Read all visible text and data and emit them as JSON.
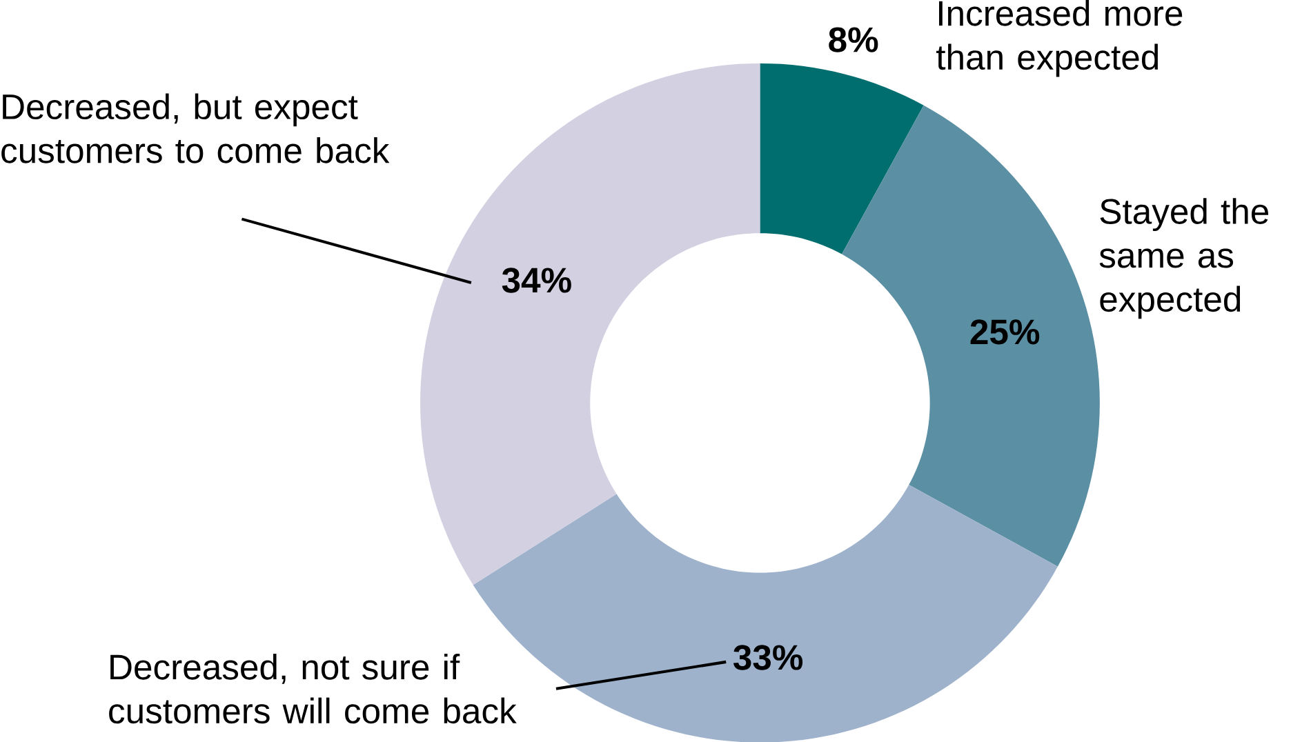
{
  "chart_data": {
    "type": "donut",
    "categories": [
      "Increased more than expected",
      "Stayed the same as expected",
      "Decreased, not sure if customers will come back",
      "Decreased, but expect customers to come back"
    ],
    "values": [
      8,
      25,
      33,
      34
    ],
    "value_labels": [
      "8%",
      "25%",
      "33%",
      "34%"
    ],
    "colors": [
      "#006e6e",
      "#5b8fa3",
      "#9fb2cc",
      "#d3d0e2"
    ]
  }
}
